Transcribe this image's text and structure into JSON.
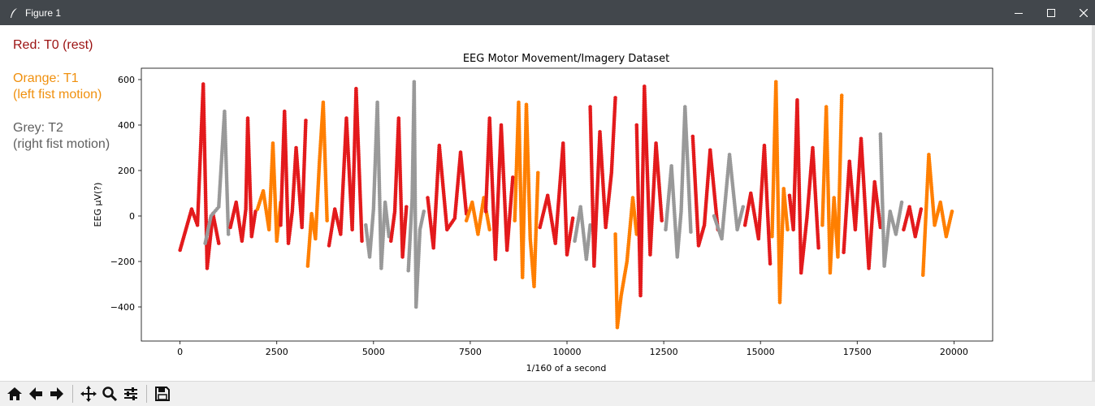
{
  "window": {
    "title": "Figure 1",
    "icons": [
      "feather-icon",
      "minimize-icon",
      "maximize-icon",
      "close-icon"
    ]
  },
  "notes": {
    "red": {
      "text": "Red: T0 (rest)",
      "color": "#9b1111"
    },
    "orange": {
      "text": "Orange: T1\n(left fist motion)",
      "color": "#f0900e"
    },
    "grey": {
      "text": "Grey: T2\n(right fist motion)",
      "color": "#5f5f5f"
    }
  },
  "toolbar": {
    "buttons": [
      "home-icon",
      "back-icon",
      "forward-icon",
      "pan-icon",
      "zoom-icon",
      "configure-subplots-icon",
      "save-icon"
    ]
  },
  "chart_data": {
    "type": "scatter",
    "title": "EEG Motor Movement/Imagery Dataset",
    "xlabel": "1/160 of a second",
    "ylabel": "EEG µV(?)",
    "xlim": [
      -1000,
      21000
    ],
    "ylim": [
      -550,
      650
    ],
    "xticks": [
      0,
      2500,
      5000,
      7500,
      10000,
      12500,
      15000,
      17500,
      20000
    ],
    "yticks": [
      -400,
      -200,
      0,
      200,
      400,
      600
    ],
    "grid": false,
    "legend": "none",
    "colors": {
      "T0": "#e31a1c",
      "T1": "#ff7f00",
      "T2": "#999999"
    },
    "series": [
      {
        "label": "T0",
        "x": [
          0,
          150,
          300,
          450,
          600,
          700,
          850,
          1000
        ],
        "y": [
          -150,
          -60,
          30,
          -40,
          580,
          -230,
          10,
          -120
        ]
      },
      {
        "label": "T2",
        "x": [
          650,
          800,
          1000,
          1150,
          1250
        ],
        "y": [
          -120,
          0,
          40,
          460,
          -80
        ]
      },
      {
        "label": "T0",
        "x": [
          1300,
          1450,
          1600,
          1700,
          1750,
          1850,
          1950
        ],
        "y": [
          -50,
          60,
          -110,
          30,
          430,
          -90,
          20
        ]
      },
      {
        "label": "T1",
        "x": [
          2000,
          2150,
          2300,
          2400,
          2500,
          2600
        ],
        "y": [
          30,
          110,
          -60,
          320,
          -110,
          60
        ]
      },
      {
        "label": "T0",
        "x": [
          2600,
          2700,
          2800,
          2900,
          3000,
          3150,
          3250
        ],
        "y": [
          -40,
          460,
          -120,
          20,
          300,
          -50,
          420
        ]
      },
      {
        "label": "T1",
        "x": [
          3300,
          3400,
          3500,
          3600,
          3700,
          3800
        ],
        "y": [
          -220,
          10,
          -100,
          230,
          500,
          -20
        ]
      },
      {
        "label": "T0",
        "x": [
          3850,
          4000,
          4150,
          4300,
          4450,
          4550,
          4700
        ],
        "y": [
          -130,
          30,
          -80,
          430,
          -60,
          560,
          -110
        ]
      },
      {
        "label": "T2",
        "x": [
          4800,
          4900,
          5000,
          5100,
          5200,
          5300,
          5400
        ],
        "y": [
          -40,
          -180,
          30,
          500,
          -230,
          60,
          -90
        ]
      },
      {
        "label": "T0",
        "x": [
          5450,
          5550,
          5650,
          5750,
          5850
        ],
        "y": [
          -110,
          20,
          430,
          -180,
          40
        ]
      },
      {
        "label": "T2",
        "x": [
          5900,
          6000,
          6050,
          6100,
          6200,
          6300
        ],
        "y": [
          -240,
          80,
          590,
          -400,
          -60,
          20
        ]
      },
      {
        "label": "T0",
        "x": [
          6400,
          6550,
          6700,
          6900,
          7100,
          7250,
          7400
        ],
        "y": [
          80,
          -140,
          310,
          -60,
          -10,
          280,
          10
        ]
      },
      {
        "label": "T1",
        "x": [
          7400,
          7550,
          7700,
          7850,
          8000
        ],
        "y": [
          -20,
          60,
          -80,
          80,
          -60
        ]
      },
      {
        "label": "T0",
        "x": [
          7900,
          8000,
          8150,
          8300,
          8450,
          8600
        ],
        "y": [
          20,
          430,
          -190,
          400,
          -150,
          170
        ]
      },
      {
        "label": "T1",
        "x": [
          8650,
          8750,
          8850,
          8950,
          9050,
          9150,
          9250
        ],
        "y": [
          -20,
          500,
          -270,
          490,
          -100,
          -310,
          190
        ]
      },
      {
        "label": "T0",
        "x": [
          9300,
          9500,
          9700,
          9900,
          10000,
          10150
        ],
        "y": [
          -50,
          90,
          -120,
          320,
          -170,
          -10
        ]
      },
      {
        "label": "T2",
        "x": [
          10200,
          10350,
          10500,
          10600
        ],
        "y": [
          -110,
          40,
          -190,
          -40
        ]
      },
      {
        "label": "T0",
        "x": [
          10600,
          10700,
          10850,
          11000,
          11150,
          11250
        ],
        "y": [
          480,
          -220,
          370,
          -50,
          190,
          520
        ]
      },
      {
        "label": "T1",
        "x": [
          11250,
          11300,
          11400,
          11550,
          11700,
          11800
        ],
        "y": [
          -80,
          -490,
          -350,
          -200,
          80,
          -80
        ]
      },
      {
        "label": "T0",
        "x": [
          11800,
          11900,
          12000,
          12150,
          12300,
          12450
        ],
        "y": [
          400,
          -350,
          570,
          -170,
          320,
          -20
        ]
      },
      {
        "label": "T2",
        "x": [
          12550,
          12700,
          12850,
          12950,
          13050,
          13200
        ],
        "y": [
          -60,
          220,
          -180,
          20,
          480,
          -70
        ]
      },
      {
        "label": "T0",
        "x": [
          13250,
          13400,
          13550,
          13700,
          13900
        ],
        "y": [
          350,
          -130,
          -40,
          290,
          -60
        ]
      },
      {
        "label": "T2",
        "x": [
          13800,
          14000,
          14200,
          14400,
          14550
        ],
        "y": [
          0,
          -100,
          270,
          -60,
          40
        ]
      },
      {
        "label": "T0",
        "x": [
          14600,
          14750,
          14950,
          15100,
          15250
        ],
        "y": [
          -40,
          100,
          -100,
          310,
          -210
        ]
      },
      {
        "label": "T1",
        "x": [
          15300,
          15400,
          15500,
          15600,
          15700
        ],
        "y": [
          -90,
          590,
          -380,
          120,
          -60
        ]
      },
      {
        "label": "T0",
        "x": [
          15750,
          15850,
          15950,
          16050,
          16200,
          16350,
          16500
        ],
        "y": [
          90,
          -60,
          510,
          -250,
          -10,
          300,
          -140
        ]
      },
      {
        "label": "T1",
        "x": [
          16600,
          16700,
          16800,
          16900,
          17000,
          17100
        ],
        "y": [
          -40,
          480,
          -250,
          80,
          -180,
          530
        ]
      },
      {
        "label": "T0",
        "x": [
          17150,
          17300,
          17450,
          17600,
          17800,
          17950,
          18100
        ],
        "y": [
          -160,
          240,
          -60,
          340,
          -230,
          150,
          -50
        ]
      },
      {
        "label": "T2",
        "x": [
          18100,
          18200,
          18350,
          18500,
          18650
        ],
        "y": [
          360,
          -220,
          20,
          -80,
          60
        ]
      },
      {
        "label": "T0",
        "x": [
          18700,
          18850,
          19000,
          19150
        ],
        "y": [
          -60,
          40,
          -90,
          30
        ]
      },
      {
        "label": "T1",
        "x": [
          19200,
          19350,
          19500,
          19650,
          19800,
          19950
        ],
        "y": [
          -260,
          270,
          -40,
          60,
          -90,
          20
        ]
      }
    ]
  }
}
